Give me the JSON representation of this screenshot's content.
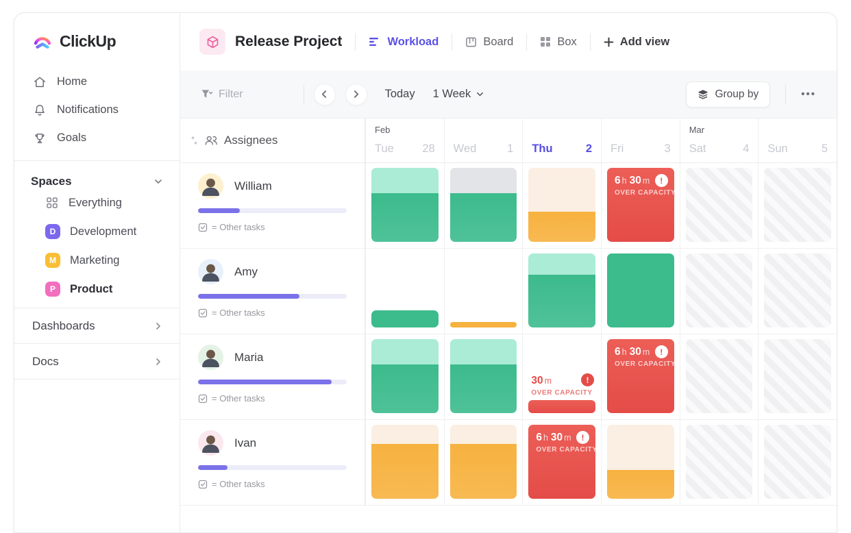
{
  "brand": {
    "name": "ClickUp"
  },
  "sidebar": {
    "nav": [
      {
        "label": "Home",
        "icon": "home-icon"
      },
      {
        "label": "Notifications",
        "icon": "bell-icon"
      },
      {
        "label": "Goals",
        "icon": "trophy-icon"
      }
    ],
    "spaces_header": "Spaces",
    "spaces": [
      {
        "label": "Everything",
        "badge": "",
        "badge_type": "grid"
      },
      {
        "label": "Development",
        "badge": "D",
        "color": "#7b68ee"
      },
      {
        "label": "Marketing",
        "badge": "M",
        "color": "#f9be33"
      },
      {
        "label": "Product",
        "badge": "P",
        "color": "#f26ebe",
        "active": true
      }
    ],
    "links": [
      {
        "label": "Dashboards"
      },
      {
        "label": "Docs"
      }
    ]
  },
  "header": {
    "project_title": "Release Project",
    "views": [
      {
        "label": "Workload",
        "icon": "workload-icon",
        "active": true
      },
      {
        "label": "Board",
        "icon": "board-icon"
      },
      {
        "label": "Box",
        "icon": "box-icon"
      }
    ],
    "add_view_label": "Add view"
  },
  "toolbar": {
    "filter_label": "Filter",
    "today_label": "Today",
    "range_label": "1 Week",
    "group_by_label": "Group by",
    "more_label": "•••"
  },
  "grid": {
    "assignees_label": "Assignees",
    "other_tasks_label": "= Other tasks",
    "over_capacity_label": "OVER CAPACITY",
    "days": [
      {
        "month": "Feb",
        "name": "Tue",
        "num": "28"
      },
      {
        "name": "Wed",
        "num": "1"
      },
      {
        "name": "Thu",
        "num": "2",
        "today": true
      },
      {
        "name": "Fri",
        "num": "3"
      },
      {
        "month": "Mar",
        "name": "Sat",
        "num": "4",
        "weekend": true
      },
      {
        "name": "Sun",
        "num": "5",
        "weekend": true
      }
    ],
    "rows": [
      {
        "name": "William",
        "progress_pct": 28,
        "avatar_bg": "#fdf0cf",
        "cells": [
          {
            "type": "split",
            "top": "mint",
            "top_pct": 34,
            "bottom": "green"
          },
          {
            "type": "split",
            "top": "gray",
            "top_pct": 34,
            "bottom": "green"
          },
          {
            "type": "split",
            "top": "peach",
            "top_pct": 59,
            "bottom": "orange"
          },
          {
            "type": "over",
            "time": "6 h 30 m"
          },
          {
            "type": "weekend"
          },
          {
            "type": "weekend"
          }
        ]
      },
      {
        "name": "Amy",
        "progress_pct": 68,
        "avatar_bg": "#e8f0fb",
        "cells": [
          {
            "type": "partial",
            "color": "green",
            "pct": 23
          },
          {
            "type": "partial",
            "color": "orange",
            "pct": 7
          },
          {
            "type": "split",
            "top": "mint",
            "top_pct": 29,
            "bottom": "green"
          },
          {
            "type": "full",
            "color": "green"
          },
          {
            "type": "weekend"
          },
          {
            "type": "weekend"
          }
        ]
      },
      {
        "name": "Maria",
        "progress_pct": 90,
        "avatar_bg": "#e5f3e6",
        "cells": [
          {
            "type": "split",
            "top": "mint",
            "top_pct": 34,
            "bottom": "green"
          },
          {
            "type": "split",
            "top": "mint",
            "top_pct": 34,
            "bottom": "green"
          },
          {
            "type": "over_light",
            "time": "30 m",
            "bar_pct": 15
          },
          {
            "type": "over",
            "time": "6 h 30 m"
          },
          {
            "type": "weekend"
          },
          {
            "type": "weekend"
          }
        ]
      },
      {
        "name": "Ivan",
        "progress_pct": 20,
        "avatar_bg": "#fbe7ee",
        "cells": [
          {
            "type": "split",
            "top": "peach",
            "top_pct": 26,
            "bottom": "orange"
          },
          {
            "type": "split",
            "top": "peach",
            "top_pct": 26,
            "bottom": "orange"
          },
          {
            "type": "over",
            "time": "6 h 30 m"
          },
          {
            "type": "split",
            "top": "peach",
            "top_pct": 61,
            "bottom": "orange"
          },
          {
            "type": "weekend"
          },
          {
            "type": "weekend"
          }
        ]
      }
    ]
  },
  "colors": {
    "accent": "#7b68ee",
    "today": "#564de2",
    "mint": "#aaecd5",
    "green": "#3cbb8d",
    "gray": "#e2e4e8",
    "peach": "#fbeee2",
    "orange": "#f7b240",
    "red": "#e85550",
    "progress": "#7b72e9"
  }
}
